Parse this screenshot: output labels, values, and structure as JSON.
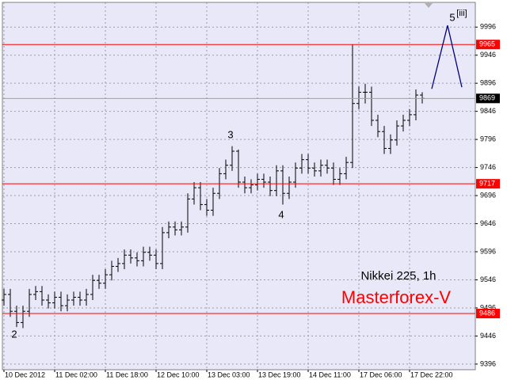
{
  "chart_data": {
    "type": "ohlc",
    "title": "Nikkei 225, 1h",
    "subtitle": "Masterforex-V",
    "categories": [
      "10 Dec 2012",
      null,
      null,
      null,
      null,
      null,
      null,
      null,
      "11 Dec 02:00",
      null,
      null,
      null,
      null,
      null,
      null,
      null,
      "11 Dec 18:00",
      null,
      null,
      null,
      null,
      null,
      null,
      null,
      "12 Dec 10:00",
      null,
      null,
      null,
      null,
      null,
      null,
      null,
      "13 Dec 03:00",
      null,
      null,
      null,
      null,
      null,
      null,
      null,
      "13 Dec 19:00",
      null,
      null,
      null,
      null,
      null,
      null,
      null,
      "14 Dec 11:00",
      null,
      null,
      null,
      null,
      null,
      null,
      null,
      "17 Dec 06:00",
      null,
      null,
      null,
      null,
      null,
      null,
      null,
      "17 Dec 22:00",
      null,
      null
    ],
    "opens": [
      9510,
      9520,
      9490,
      9470,
      9490,
      9520,
      9525,
      9510,
      9505,
      9515,
      9500,
      9510,
      9515,
      9510,
      9520,
      9545,
      9540,
      9555,
      9570,
      9575,
      9590,
      9585,
      9580,
      9595,
      9590,
      9575,
      9630,
      9640,
      9635,
      9640,
      9690,
      9710,
      9680,
      9670,
      9700,
      9735,
      9750,
      9775,
      9720,
      9710,
      9715,
      9725,
      9720,
      9705,
      9740,
      9700,
      9720,
      9745,
      9760,
      9745,
      9740,
      9750,
      9745,
      9725,
      9735,
      9755,
      9860,
      9880,
      9880,
      9830,
      9810,
      9780,
      9795,
      9820,
      9830,
      9840,
      9875
    ],
    "highs": [
      9530,
      9530,
      9500,
      9500,
      9530,
      9535,
      9535,
      9520,
      9525,
      9525,
      9520,
      9525,
      9525,
      9530,
      9555,
      9555,
      9565,
      9580,
      9585,
      9600,
      9600,
      9595,
      9605,
      9605,
      9600,
      9640,
      9650,
      9650,
      9650,
      9700,
      9720,
      9720,
      9690,
      9710,
      9745,
      9760,
      9784,
      9778,
      9730,
      9725,
      9735,
      9735,
      9730,
      9750,
      9750,
      9730,
      9755,
      9770,
      9770,
      9755,
      9760,
      9760,
      9755,
      9745,
      9765,
      9965,
      9890,
      9895,
      9890,
      9840,
      9820,
      9805,
      9830,
      9840,
      9850,
      9885,
      9880
    ],
    "lows": [
      9500,
      9480,
      9462,
      9460,
      9480,
      9510,
      9500,
      9495,
      9495,
      9490,
      9490,
      9500,
      9500,
      9500,
      9510,
      9530,
      9530,
      9545,
      9560,
      9565,
      9575,
      9570,
      9570,
      9580,
      9565,
      9565,
      9620,
      9625,
      9625,
      9630,
      9680,
      9670,
      9660,
      9660,
      9690,
      9725,
      9740,
      9710,
      9700,
      9700,
      9705,
      9710,
      9695,
      9695,
      9680,
      9690,
      9710,
      9735,
      9735,
      9730,
      9730,
      9735,
      9715,
      9715,
      9725,
      9745,
      9850,
      9860,
      9820,
      9800,
      9770,
      9770,
      9785,
      9810,
      9820,
      9830,
      9860
    ],
    "closes": [
      9520,
      9490,
      9470,
      9490,
      9520,
      9525,
      9510,
      9505,
      9515,
      9500,
      9510,
      9515,
      9510,
      9520,
      9545,
      9540,
      9555,
      9570,
      9575,
      9590,
      9585,
      9580,
      9595,
      9590,
      9575,
      9630,
      9640,
      9635,
      9640,
      9690,
      9710,
      9680,
      9670,
      9700,
      9735,
      9750,
      9775,
      9720,
      9710,
      9715,
      9725,
      9720,
      9705,
      9740,
      9700,
      9720,
      9745,
      9760,
      9745,
      9740,
      9750,
      9745,
      9725,
      9735,
      9755,
      9860,
      9880,
      9880,
      9830,
      9810,
      9780,
      9795,
      9820,
      9830,
      9840,
      9875,
      9869
    ],
    "color": "#000000",
    "ylim": [
      9386,
      10040
    ],
    "yticks": [
      9396,
      9446,
      9496,
      9546,
      9596,
      9646,
      9696,
      9746,
      9796,
      9846,
      9896,
      9946,
      9996
    ],
    "grid": true,
    "levels": [
      {
        "value": 9965,
        "color": "#ff0000"
      },
      {
        "value": 9869,
        "color": "#a0a0a0"
      },
      {
        "value": 9717,
        "color": "#ff0000"
      },
      {
        "value": 9486,
        "color": "#ff0000"
      }
    ],
    "projection": {
      "x": [
        67.5,
        70,
        72.25
      ],
      "values": [
        9886,
        9999,
        9889
      ],
      "color": "#000080"
    },
    "annotations": [
      "2",
      "3",
      "4",
      "5",
      "[iii]"
    ]
  }
}
